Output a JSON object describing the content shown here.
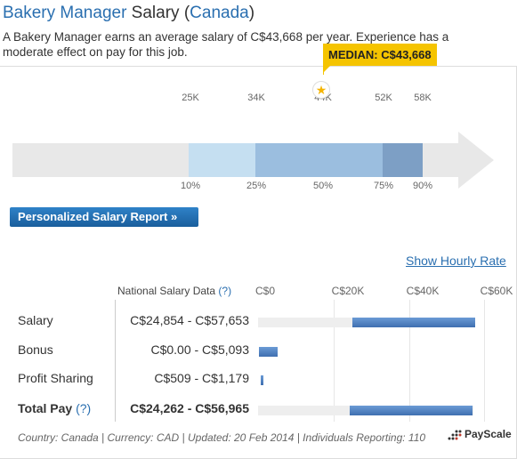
{
  "title": {
    "job": "Bakery Manager",
    "mid": " Salary (",
    "country": "Canada",
    "end": ")"
  },
  "subtitle": "A Bakery Manager earns an average salary of C$43,668 per year. Experience has a moderate effect on pay for this job.",
  "distribution": {
    "ticks": [
      "25K",
      "34K",
      "44K",
      "52K",
      "58K"
    ],
    "percentiles": [
      "10%",
      "25%",
      "50%",
      "75%",
      "90%"
    ],
    "median_label": "MEDIAN: C$43,668",
    "colors": {
      "light": "#c5dff1",
      "mid": "#9bbedf",
      "dark": "#7d9fc5",
      "arrow": "#e8e8e8",
      "median": "#f5c400"
    }
  },
  "report_button": "Personalized Salary Report »",
  "hourly_link": "Show Hourly Rate",
  "table": {
    "header": "National Salary Data",
    "help": "(?)",
    "axis": [
      "C$0",
      "C$20K",
      "C$40K",
      "C$60K"
    ],
    "rows": [
      {
        "label": "Salary",
        "range": "C$24,854 - C$57,653",
        "min": 24854,
        "max": 57653
      },
      {
        "label": "Bonus",
        "range": "C$0.00 - C$5,093",
        "min": 0,
        "max": 5093
      },
      {
        "label": "Profit Sharing",
        "range": "C$509 - C$1,179",
        "min": 509,
        "max": 1179
      },
      {
        "label": "Total Pay",
        "help": "(?)",
        "range": "C$24,262 - C$56,965",
        "min": 24262,
        "max": 56965
      }
    ]
  },
  "footer": "Country: Canada | Currency: CAD | Updated: 20 Feb 2014 | Individuals Reporting: 110",
  "logo": "PayScale"
}
